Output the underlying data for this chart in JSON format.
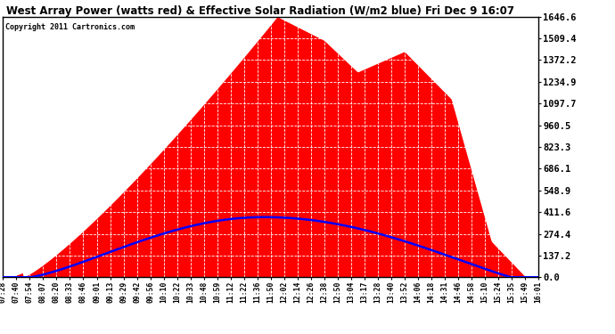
{
  "title": "West Array Power (watts red) & Effective Solar Radiation (W/m2 blue) Fri Dec 9 16:07",
  "copyright": "Copyright 2011 Cartronics.com",
  "background_color": "#ffffff",
  "plot_bg_color": "#ffffff",
  "grid_color": "#aaaaaa",
  "fill_color": "#ff0000",
  "line_color": "#0000ff",
  "ymax": 1646.6,
  "ymin": 0.0,
  "yticks": [
    0.0,
    137.2,
    274.4,
    411.6,
    548.9,
    686.1,
    823.3,
    960.5,
    1097.7,
    1234.9,
    1372.2,
    1509.4,
    1646.6
  ],
  "x_labels": [
    "07:28",
    "07:40",
    "07:54",
    "08:07",
    "08:20",
    "08:33",
    "08:46",
    "09:01",
    "09:13",
    "09:29",
    "09:42",
    "09:56",
    "10:10",
    "10:22",
    "10:33",
    "10:48",
    "10:59",
    "11:12",
    "11:22",
    "11:36",
    "11:50",
    "12:02",
    "12:14",
    "12:26",
    "12:38",
    "12:50",
    "13:04",
    "13:17",
    "13:28",
    "13:40",
    "13:52",
    "14:06",
    "14:18",
    "14:31",
    "14:46",
    "14:58",
    "15:10",
    "15:24",
    "15:35",
    "15:49",
    "16:01"
  ],
  "red_peak_value": 1646.6,
  "red_peak_index": 20,
  "red_shoulder_index": 30,
  "red_shoulder_value": 1350,
  "blue_peak_value": 380,
  "blue_peak_index": 19
}
